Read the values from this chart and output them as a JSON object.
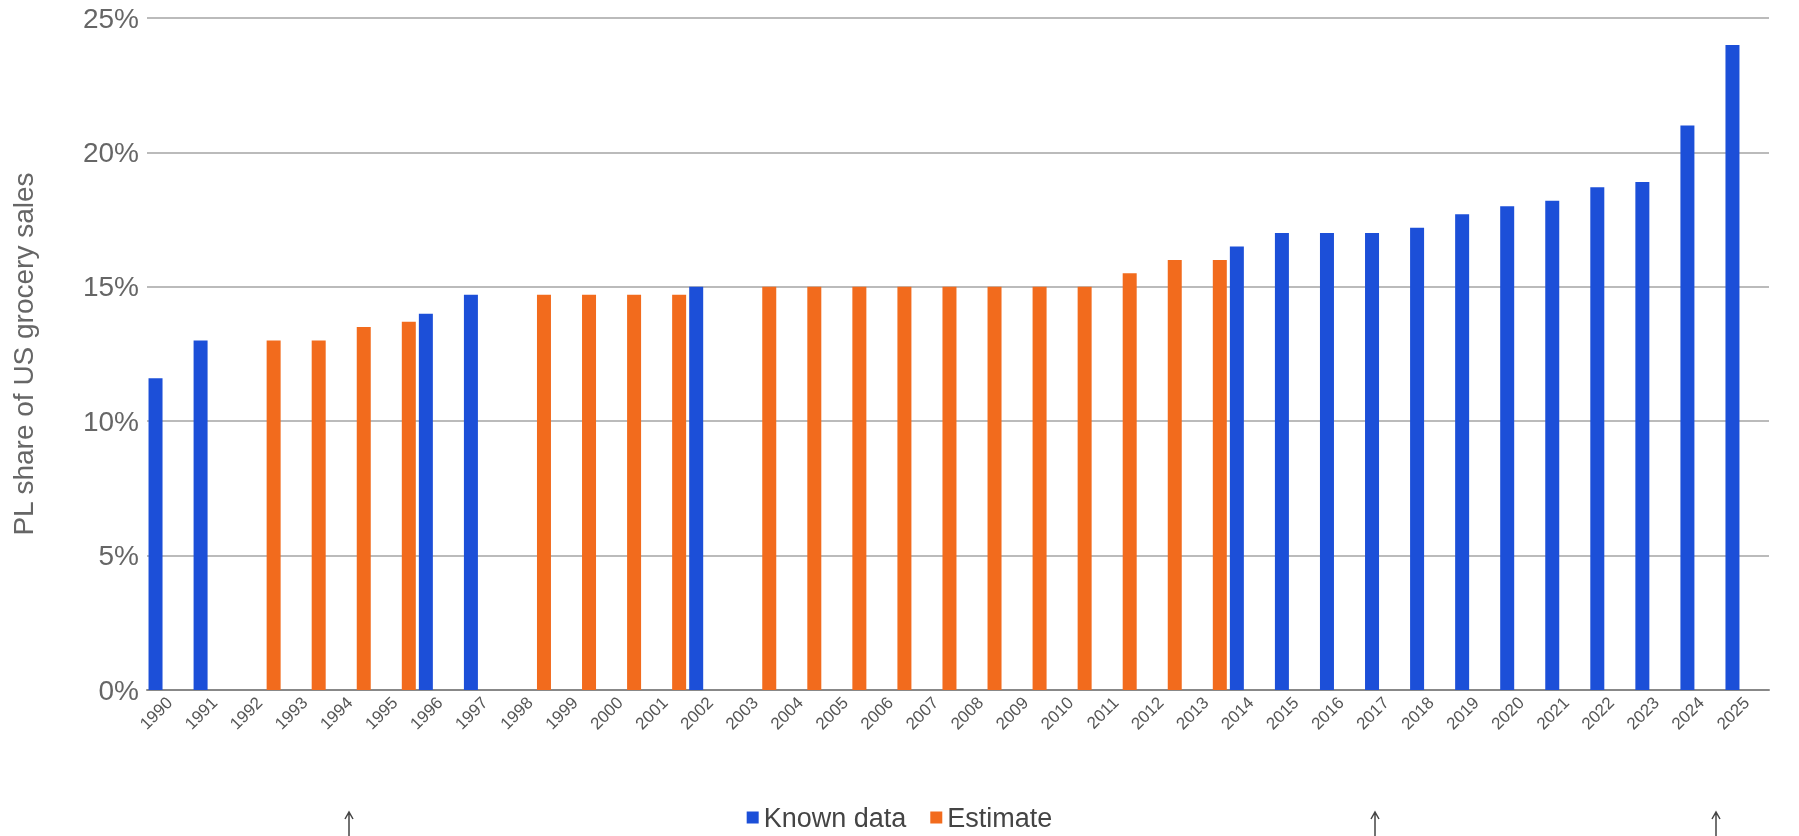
{
  "chart_data": {
    "type": "bar",
    "ylabel": "PL share of US grocery sales",
    "categories": [
      "1990",
      "1991",
      "1992",
      "1993",
      "1994",
      "1995",
      "1996",
      "1997",
      "1998",
      "1999",
      "2000",
      "2001",
      "2002",
      "2003",
      "2004",
      "2005",
      "2006",
      "2007",
      "2008",
      "2009",
      "2010",
      "2011",
      "2012",
      "2013",
      "2014",
      "2015",
      "2016",
      "2017",
      "2018",
      "2019",
      "2020",
      "2021",
      "2022",
      "2023",
      "2024",
      "2025"
    ],
    "series": [
      {
        "name": "Known data",
        "color": "#1c4fd8",
        "values": [
          11.6,
          13,
          null,
          null,
          null,
          null,
          14,
          14.7,
          null,
          null,
          null,
          null,
          15,
          null,
          null,
          null,
          null,
          null,
          null,
          null,
          null,
          null,
          null,
          null,
          16.5,
          17,
          17,
          17,
          17.2,
          17.7,
          18,
          18.2,
          18.7,
          18.9,
          21,
          24
        ]
      },
      {
        "name": "Estimate",
        "color": "#f26b1d",
        "values": [
          null,
          null,
          13,
          13,
          13.5,
          13.7,
          null,
          null,
          14.7,
          14.7,
          14.7,
          14.7,
          null,
          15,
          15,
          15,
          15,
          15,
          15,
          15,
          15,
          15.5,
          16,
          16,
          null,
          null,
          null,
          null,
          null,
          null,
          null,
          null,
          null,
          null,
          null,
          null
        ]
      }
    ],
    "ylim": [
      0,
      25
    ],
    "yticks": [
      {
        "value": 0,
        "label": "0%"
      },
      {
        "value": 5,
        "label": "5%"
      },
      {
        "value": 10,
        "label": "10%"
      },
      {
        "value": 15,
        "label": "15%"
      },
      {
        "value": 20,
        "label": "20%"
      },
      {
        "value": 25,
        "label": "25%"
      }
    ],
    "grid": "y",
    "legend": "bottom"
  }
}
